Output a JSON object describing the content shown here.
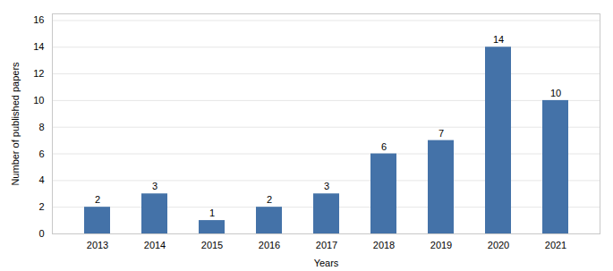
{
  "chart_data": {
    "type": "bar",
    "xlabel": "Years",
    "ylabel": "Number of published papers",
    "categories": [
      "2013",
      "2014",
      "2015",
      "2016",
      "2017",
      "2018",
      "2019",
      "2020",
      "2021"
    ],
    "values": [
      2,
      3,
      1,
      2,
      3,
      6,
      7,
      14,
      10
    ],
    "color": "#4472a8",
    "ylim": [
      0,
      16.5
    ],
    "yticks": [
      0,
      2,
      4,
      6,
      8,
      10,
      12,
      14,
      16
    ],
    "grid": true,
    "data_labels": true
  }
}
